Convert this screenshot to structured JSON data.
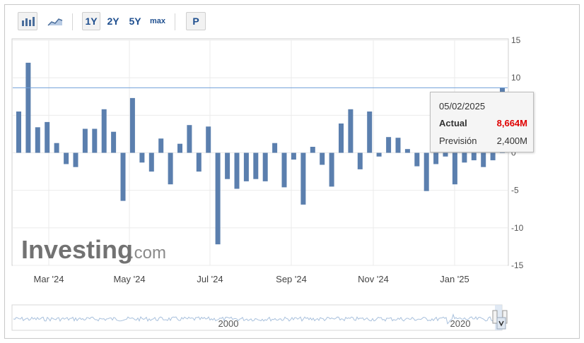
{
  "toolbar": {
    "buttons": [
      "1Y",
      "2Y",
      "5Y",
      "max"
    ],
    "selected": "1Y",
    "p_label": "P",
    "bar_icon": "bar-chart-icon",
    "area_icon": "area-chart-icon"
  },
  "tooltip": {
    "date": "05/02/2025",
    "actual_label": "Actual",
    "actual_value": "8,664M",
    "forecast_label": "Previsión",
    "forecast_value": "2,400M"
  },
  "watermark": {
    "brand": "Investing",
    "suffix": ".com"
  },
  "navigator": {
    "labels": [
      "2000",
      "2020"
    ]
  },
  "colors": {
    "bar": "#5b7fae",
    "refline": "#6f9fd8",
    "actual": "#e00000"
  },
  "chart_data": {
    "type": "bar",
    "title": "",
    "xlabel": "",
    "ylabel": "",
    "ylim": [
      -15,
      15
    ],
    "yticks": [
      15,
      10,
      5,
      0,
      -5,
      -10,
      -15
    ],
    "xtick_labels": [
      "Mar '24",
      "May '24",
      "Jul '24",
      "Sep '24",
      "Nov '24",
      "Jan '25"
    ],
    "reference_line": 8.664,
    "values": [
      5.5,
      12.0,
      3.4,
      4.1,
      1.3,
      -1.5,
      -1.9,
      3.2,
      3.2,
      5.8,
      2.8,
      -6.4,
      7.3,
      -1.3,
      -2.5,
      1.9,
      -4.2,
      1.2,
      3.7,
      -2.5,
      3.5,
      -12.2,
      -3.5,
      -4.8,
      -3.8,
      -3.5,
      -3.8,
      1.3,
      -4.6,
      -0.9,
      -6.9,
      0.8,
      -1.6,
      -4.5,
      3.9,
      5.8,
      -2.2,
      5.5,
      -0.5,
      2.1,
      2.0,
      0.5,
      -1.8,
      -5.1,
      -1.5,
      -0.5,
      -4.2,
      -1.3,
      -1.0,
      -1.9,
      -1.0,
      8.664
    ]
  }
}
